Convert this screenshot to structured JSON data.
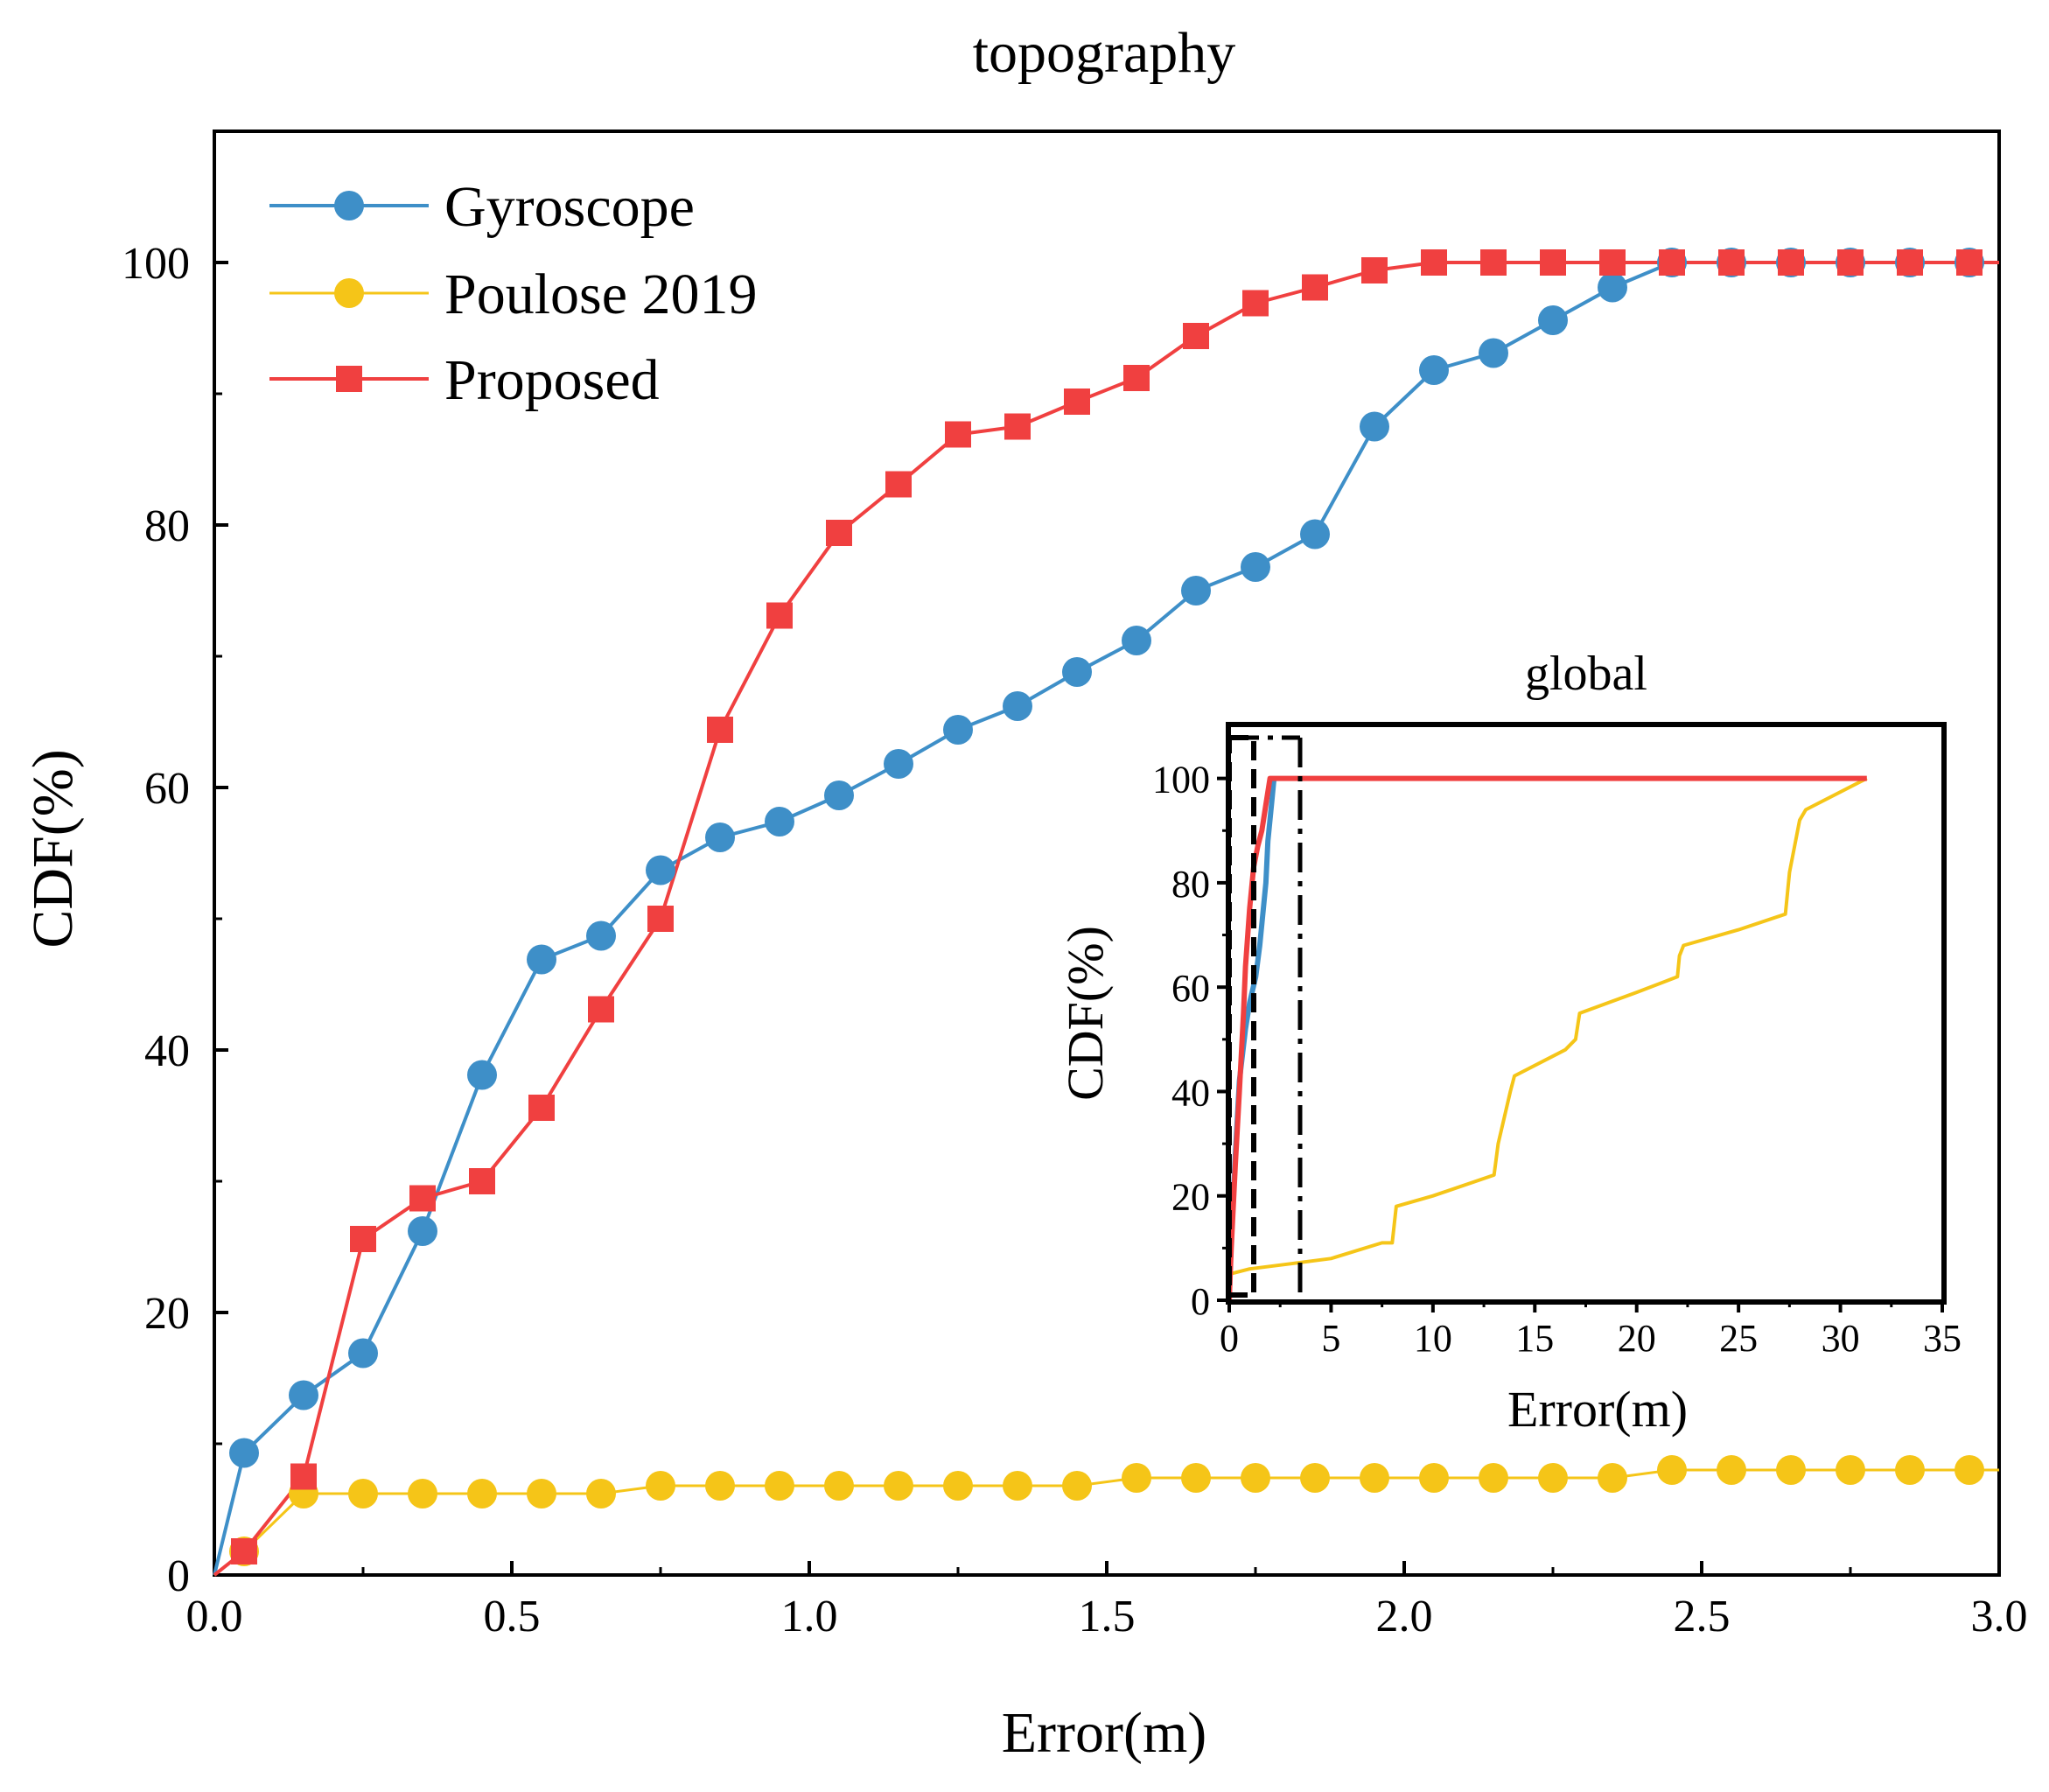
{
  "chart_data": [
    {
      "type": "line",
      "title": "topography",
      "xlabel": "Error(m)",
      "ylabel": "CDF(%)",
      "xlim": [
        0,
        3.0
      ],
      "ylim": [
        0,
        110
      ],
      "xticks": [
        0.0,
        0.5,
        1.0,
        1.5,
        2.0,
        2.5,
        3.0
      ],
      "xtick_labels": [
        "0.0",
        "0.5",
        "1.0",
        "1.5",
        "2.0",
        "2.5",
        "3.0"
      ],
      "yticks": [
        0,
        20,
        40,
        60,
        80,
        100
      ],
      "ytick_labels": [
        "0",
        "20",
        "40",
        "60",
        "80",
        "100"
      ],
      "grid": false,
      "legend_position": "top-left",
      "series": [
        {
          "name": "Gyroscope",
          "color": "#3E8FC8",
          "marker": "circle",
          "x": [
            0.0,
            0.05,
            0.15,
            0.25,
            0.35,
            0.45,
            0.55,
            0.65,
            0.75,
            0.85,
            0.95,
            1.05,
            1.15,
            1.25,
            1.35,
            1.45,
            1.55,
            1.65,
            1.75,
            1.85,
            1.95,
            2.05,
            2.15,
            2.25,
            2.35,
            2.45,
            2.55,
            2.65,
            2.75,
            2.85,
            2.95,
            3.0
          ],
          "y": [
            0,
            9.3,
            13.7,
            16.9,
            26.2,
            38.1,
            46.9,
            48.7,
            53.7,
            56.2,
            57.4,
            59.4,
            61.8,
            64.4,
            66.2,
            68.8,
            71.2,
            75.0,
            76.8,
            79.3,
            87.5,
            91.8,
            93.1,
            95.6,
            98.1,
            100,
            100,
            100,
            100,
            100,
            100,
            100
          ],
          "marker_count": 30
        },
        {
          "name": "Poulose 2019",
          "color": "#F5C518",
          "marker": "circle",
          "x": [
            0.0,
            0.05,
            0.15,
            0.25,
            0.35,
            0.45,
            0.55,
            0.65,
            0.75,
            0.85,
            0.95,
            1.05,
            1.15,
            1.25,
            1.35,
            1.45,
            1.55,
            1.65,
            1.75,
            1.85,
            1.95,
            2.05,
            2.15,
            2.25,
            2.35,
            2.45,
            2.55,
            2.65,
            2.75,
            2.85,
            2.95,
            3.0
          ],
          "y": [
            0,
            1.8,
            6.2,
            6.2,
            6.2,
            6.2,
            6.2,
            6.2,
            6.8,
            6.8,
            6.8,
            6.8,
            6.8,
            6.8,
            6.8,
            6.8,
            7.4,
            7.4,
            7.4,
            7.4,
            7.4,
            7.4,
            7.4,
            7.4,
            7.4,
            8.0,
            8.0,
            8.0,
            8.0,
            8.0,
            8.0,
            8.0
          ],
          "marker_count": 30
        },
        {
          "name": "Proposed",
          "color": "#F04040",
          "marker": "square",
          "x": [
            0.0,
            0.05,
            0.15,
            0.25,
            0.35,
            0.45,
            0.55,
            0.65,
            0.75,
            0.85,
            0.95,
            1.05,
            1.15,
            1.25,
            1.35,
            1.45,
            1.55,
            1.65,
            1.75,
            1.85,
            1.95,
            2.05,
            2.15,
            2.25,
            2.35,
            2.45,
            2.55,
            2.65,
            2.75,
            2.85,
            2.95,
            3.0
          ],
          "y": [
            0,
            1.8,
            7.5,
            25.6,
            28.7,
            30.0,
            35.6,
            43.1,
            50.0,
            64.4,
            73.1,
            79.4,
            83.1,
            86.9,
            87.5,
            89.4,
            91.2,
            94.4,
            96.9,
            98.1,
            99.4,
            100,
            100,
            100,
            100,
            100,
            100,
            100,
            100,
            100,
            100,
            100
          ],
          "marker_count": 30
        }
      ]
    },
    {
      "type": "line",
      "title": "global",
      "xlabel": "Error(m)",
      "ylabel": "CDF(%)",
      "xlim": [
        0,
        35
      ],
      "ylim": [
        0,
        110
      ],
      "xticks": [
        0,
        5,
        10,
        15,
        20,
        25,
        30,
        35
      ],
      "xtick_labels": [
        "0",
        "5",
        "10",
        "15",
        "20",
        "25",
        "30",
        "35"
      ],
      "yticks": [
        0,
        20,
        40,
        60,
        80,
        100
      ],
      "ytick_labels": [
        "0",
        "20",
        "40",
        "60",
        "80",
        "100"
      ],
      "grid": false,
      "series": [
        {
          "name": "Gyroscope",
          "color": "#3E8FC8",
          "x": [
            0,
            0.1,
            0.3,
            0.5,
            0.8,
            1.0,
            1.3,
            1.5,
            1.8,
            1.9,
            2.1,
            2.2
          ],
          "y": [
            0,
            12,
            28,
            42,
            52,
            57,
            62,
            68,
            80,
            88,
            96,
            100
          ]
        },
        {
          "name": "Poulose 2019",
          "color": "#F5C518",
          "x": [
            0,
            1.0,
            3.0,
            5.0,
            7.5,
            8.0,
            8.2,
            10,
            13,
            13.2,
            13.8,
            14,
            16,
            16.5,
            17,
            17.2,
            20,
            22,
            22.1,
            22.3,
            25,
            27.3,
            27.5,
            28,
            28.3,
            31.3
          ],
          "y": [
            5,
            6,
            7,
            8,
            11,
            11,
            18,
            20,
            24,
            30,
            40,
            43,
            47,
            48,
            50,
            55,
            59,
            62,
            66,
            68,
            71,
            74,
            82,
            92,
            94,
            100
          ]
        },
        {
          "name": "Proposed",
          "color": "#F04040",
          "x": [
            0,
            0.1,
            0.3,
            0.5,
            0.7,
            0.8,
            1.0,
            1.2,
            1.4,
            1.6,
            1.8,
            2.0,
            31.3
          ],
          "y": [
            0,
            10,
            26,
            40,
            55,
            64,
            75,
            83,
            87,
            90,
            95,
            100,
            100
          ]
        }
      ],
      "zoom_box": {
        "x": [
          0,
          3.5
        ],
        "y": [
          0,
          107
        ]
      }
    }
  ]
}
